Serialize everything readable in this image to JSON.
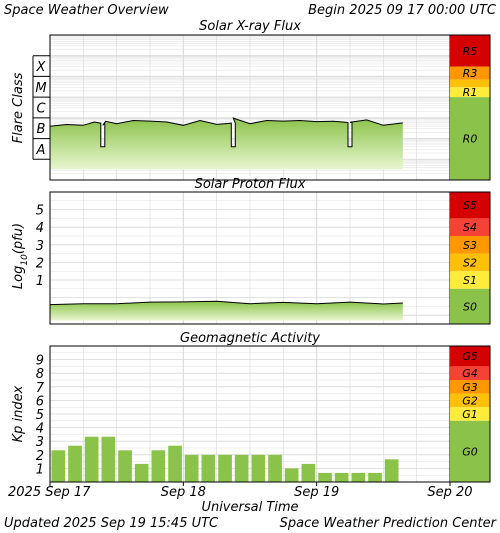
{
  "header": {
    "title": "Space Weather Overview",
    "begin_label": "Begin",
    "begin_time": "2025 09 17 00:00 UTC"
  },
  "footer": {
    "updated_label": "Updated",
    "updated_time": "2025 Sep 19 15:45 UTC",
    "credit": "Space Weather Prediction Center"
  },
  "time_axis": {
    "title": "Universal Time",
    "ticks": [
      "2025 Sep 17",
      "Sep 18",
      "Sep 19",
      "Sep 20"
    ],
    "start": "2025-09-17T00:00Z",
    "end": "2025-09-20T00:00Z"
  },
  "colors": {
    "fill": "#8bc34a",
    "fill_light": "#e8f5d0",
    "scale_level_0": "#8bc34a",
    "scale_level_1": "#ffeb3b",
    "scale_level_2": "#ffc107",
    "scale_level_3": "#ff9800",
    "scale_level_4": "#f44336",
    "scale_level_5": "#d50000",
    "grid": "#d8d8d8"
  },
  "chart_data": [
    {
      "type": "area",
      "title": "Solar X-ray Flux",
      "ylabel": "Flare Class",
      "y_scale": "log",
      "ylim": [
        1e-09,
        0.01
      ],
      "y_categories": [
        "A",
        "B",
        "C",
        "M",
        "X"
      ],
      "scale_labels": [
        "R5",
        "R3",
        "R1",
        "R0"
      ],
      "series": [
        {
          "name": "",
          "x": [
            "2025-09-17T00:00Z",
            "2025-09-17T03:00Z",
            "2025-09-17T06:00Z",
            "2025-09-17T08:00Z",
            "2025-09-17T09:30Z",
            "2025-09-17T10:00Z",
            "2025-09-17T12:00Z",
            "2025-09-17T15:00Z",
            "2025-09-17T18:00Z",
            "2025-09-17T21:00Z",
            "2025-09-18T00:00Z",
            "2025-09-18T03:00Z",
            "2025-09-18T06:00Z",
            "2025-09-18T09:00Z",
            "2025-09-18T12:00Z",
            "2025-09-18T15:00Z",
            "2025-09-18T18:00Z",
            "2025-09-18T21:00Z",
            "2025-09-19T00:00Z",
            "2025-09-19T03:00Z",
            "2025-09-19T06:00Z",
            "2025-09-19T09:00Z",
            "2025-09-19T12:00Z",
            "2025-09-19T15:30Z"
          ],
          "values": [
            4.5e-07,
            4.2e-07,
            5e-07,
            5.5e-07,
            5e-07,
            6e-07,
            6e-07,
            6.5e-07,
            8e-07,
            5.5e-07,
            5e-07,
            6.5e-07,
            5.5e-07,
            8.5e-07,
            6e-07,
            6.5e-07,
            8e-07,
            6.5e-07,
            7.5e-07,
            6e-07,
            7e-07,
            7e-07,
            5e-07,
            5e-07
          ]
        }
      ],
      "data_gaps": [
        "2025-09-17T09:30Z",
        "2025-09-18T09:00Z",
        "2025-09-19T06:00Z"
      ]
    },
    {
      "type": "area",
      "title": "Solar Proton Flux",
      "ylabel": "Log10(pfu)",
      "ylim": [
        -1.5,
        6
      ],
      "y_ticks": [
        1,
        2,
        3,
        4,
        5
      ],
      "scale_labels": [
        "S5",
        "S4",
        "S3",
        "S2",
        "S1",
        "S0"
      ],
      "series": [
        {
          "name": "",
          "x": [
            "2025-09-17T00:00Z",
            "2025-09-17T06:00Z",
            "2025-09-17T12:00Z",
            "2025-09-17T18:00Z",
            "2025-09-18T00:00Z",
            "2025-09-18T06:00Z",
            "2025-09-18T12:00Z",
            "2025-09-18T18:00Z",
            "2025-09-19T00:00Z",
            "2025-09-19T06:00Z",
            "2025-09-19T12:00Z",
            "2025-09-19T15:30Z"
          ],
          "values": [
            -0.35,
            -0.4,
            -0.3,
            -0.3,
            -0.2,
            -0.25,
            -0.3,
            -0.32,
            -0.3,
            -0.3,
            -0.32,
            -0.35
          ]
        }
      ]
    },
    {
      "type": "bar",
      "title": "Geomagnetic Activity",
      "ylabel": "Kp index",
      "ylim": [
        0,
        10
      ],
      "y_ticks": [
        1,
        2,
        3,
        4,
        5,
        6,
        7,
        8,
        9
      ],
      "scale_labels": [
        "G5",
        "G4",
        "G3",
        "G2",
        "G1",
        "G0"
      ],
      "categories": [
        "2025-09-17T00:00Z",
        "2025-09-17T03:00Z",
        "2025-09-17T06:00Z",
        "2025-09-17T09:00Z",
        "2025-09-17T12:00Z",
        "2025-09-17T15:00Z",
        "2025-09-17T18:00Z",
        "2025-09-17T21:00Z",
        "2025-09-18T00:00Z",
        "2025-09-18T03:00Z",
        "2025-09-18T06:00Z",
        "2025-09-18T09:00Z",
        "2025-09-18T12:00Z",
        "2025-09-18T15:00Z",
        "2025-09-18T18:00Z",
        "2025-09-18T21:00Z",
        "2025-09-19T00:00Z",
        "2025-09-19T03:00Z",
        "2025-09-19T06:00Z",
        "2025-09-19T09:00Z",
        "2025-09-19T12:00Z"
      ],
      "values": [
        2.33,
        2.67,
        3.33,
        3.33,
        2.33,
        1.33,
        2.33,
        2.67,
        2.0,
        2.0,
        2.0,
        2.0,
        2.0,
        2.0,
        1.0,
        1.33,
        0.67,
        0.67,
        0.67,
        0.67,
        1.67
      ]
    }
  ]
}
